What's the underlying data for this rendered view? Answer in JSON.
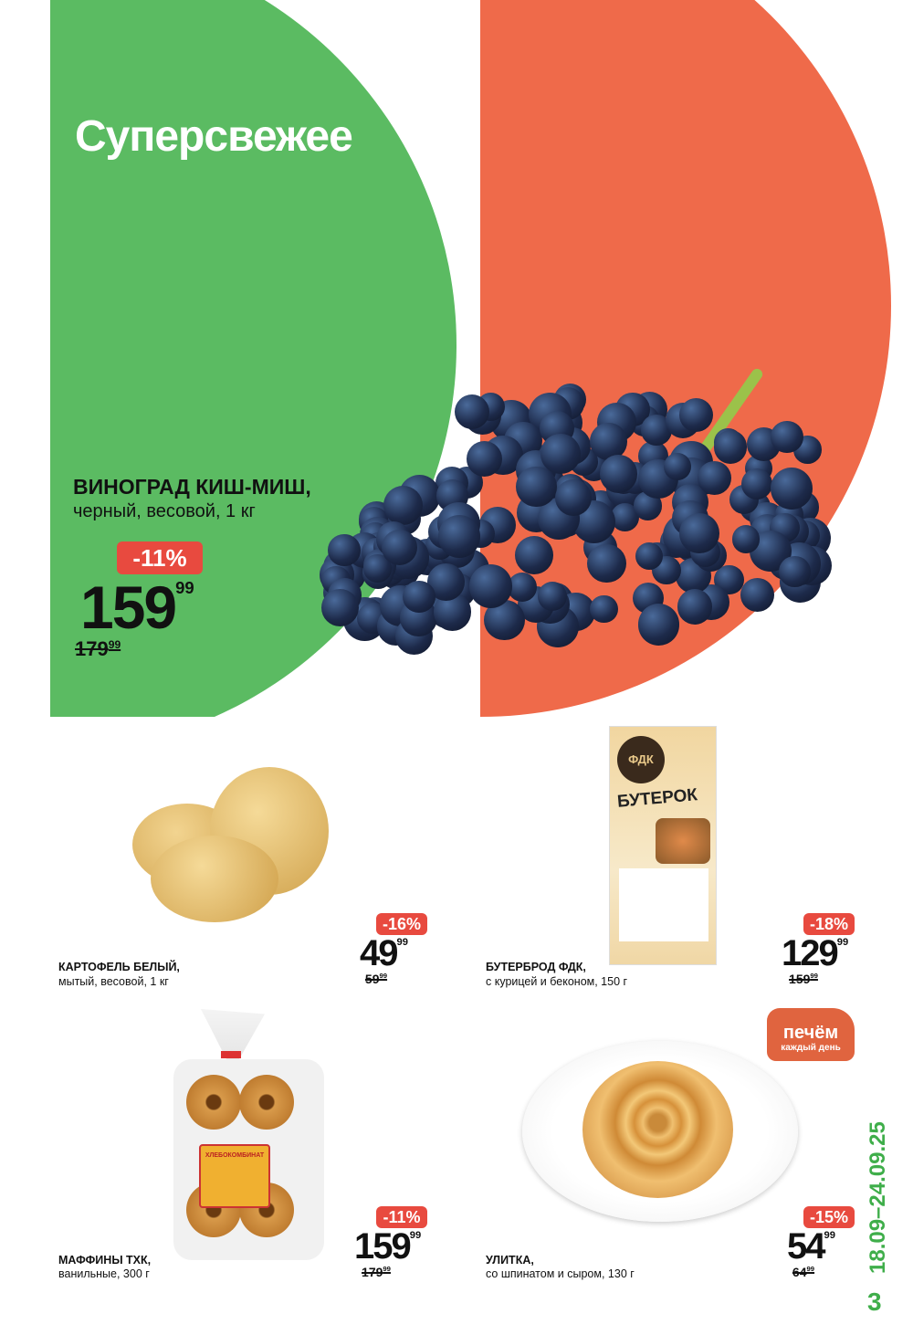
{
  "header": {
    "title": "Суперсвежее"
  },
  "colors": {
    "green": "#5bbb62",
    "orange": "#ef6a4a",
    "badge": "#e84a3f",
    "date": "#3fae4a"
  },
  "hero": {
    "name": "ВИНОГРАД КИШ-МИШ,",
    "sub": "черный, весовой, 1 кг",
    "discount": "-11%",
    "price": "159",
    "kopecks": "99",
    "old_price": "179",
    "old_kopecks": "99"
  },
  "products": [
    {
      "name": "КАРТОФЕЛЬ БЕЛЫЙ,",
      "sub": "мытый, весовой, 1 кг",
      "discount": "-16%",
      "price": "49",
      "kopecks": "99",
      "old_price": "59",
      "old_kopecks": "99"
    },
    {
      "name": "БУТЕРБРОД ФДК,",
      "sub": "с курицей и беконом, 150 г",
      "discount": "-18%",
      "price": "129",
      "kopecks": "99",
      "old_price": "159",
      "old_kopecks": "99",
      "package_label": "БУТЕРОК",
      "brand": "ФДК"
    },
    {
      "name": "МАФФИНЫ ТХК,",
      "sub": "ванильные, 300 г",
      "discount": "-11%",
      "price": "159",
      "kopecks": "99",
      "old_price": "179",
      "old_kopecks": "99",
      "package_label": "ХЛЕБОКОМБИНАТ"
    },
    {
      "name": "УЛИТКА,",
      "sub": "со шпинатом и сыром, 130 г",
      "discount": "-15%",
      "price": "54",
      "kopecks": "99",
      "old_price": "64",
      "old_kopecks": "99"
    }
  ],
  "bake_badge": {
    "line1": "печём",
    "line2": "каждый день"
  },
  "footer": {
    "dates": "18.09–24.09.25",
    "page": "3"
  }
}
